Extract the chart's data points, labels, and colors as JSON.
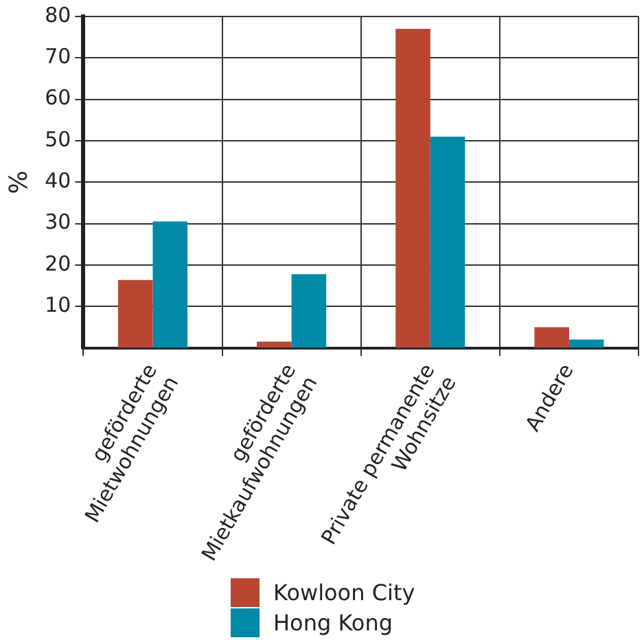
{
  "chart_data": {
    "type": "bar",
    "ylabel": "%",
    "categories": [
      "geförderte\nMietwohnungen",
      "geförderte\nMietkaufwohnungen",
      "Private permanente\nWohnsitze",
      "Andere"
    ],
    "series": [
      {
        "name": "Kowloon City",
        "color": "#b94632",
        "values": [
          16.4,
          1.5,
          77,
          5
        ]
      },
      {
        "name": "Hong Kong",
        "color": "#008aa8",
        "values": [
          30.5,
          17.8,
          51,
          2
        ]
      }
    ],
    "ylim": [
      0,
      80
    ],
    "yticks": [
      10,
      20,
      30,
      40,
      50,
      60,
      70,
      80
    ],
    "grid": true,
    "legend": "bottom"
  }
}
